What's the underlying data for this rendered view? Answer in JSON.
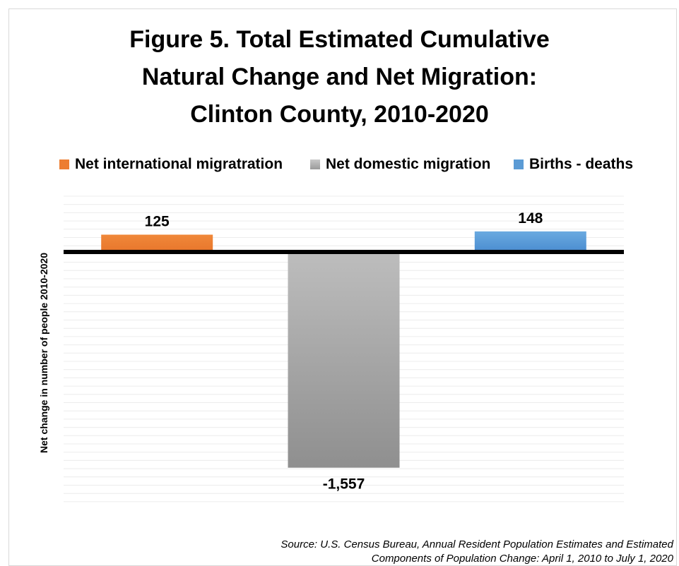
{
  "title_lines": [
    "Figure 5. Total Estimated Cumulative",
    "Natural Change and Net Migration:",
    "Clinton County, 2010-2020"
  ],
  "y_axis_label": "Net change in number of people 2010-2020",
  "source_lines": [
    "Source: U.S. Census Bureau, Annual Resident Population Estimates and Estimated",
    "Components of Population Change: April 1, 2010 to July 1, 2020"
  ],
  "colors": {
    "orange": "#ed7d31",
    "gray": "#a5a5a5",
    "blue": "#5b9bd5",
    "zero_line": "#000000",
    "grid": "#ececec"
  },
  "chart_data": {
    "type": "bar",
    "title": "Figure 5. Total Estimated Cumulative Natural Change and Net Migration: Clinton County, 2010-2020",
    "ylabel": "Net change in number of people 2010-2020",
    "xlabel": "",
    "legend_position": "top",
    "grid": true,
    "ylim": [
      -1800,
      400
    ],
    "series": [
      {
        "name": "Net international migratration",
        "value": 125,
        "label": "125",
        "color": "#ed7d31"
      },
      {
        "name": "Net domestic migration",
        "value": -1557,
        "label": "-1,557",
        "color": "#a5a5a5"
      },
      {
        "name": "Births  - deaths",
        "value": 148,
        "label": "148",
        "color": "#5b9bd5"
      }
    ]
  }
}
